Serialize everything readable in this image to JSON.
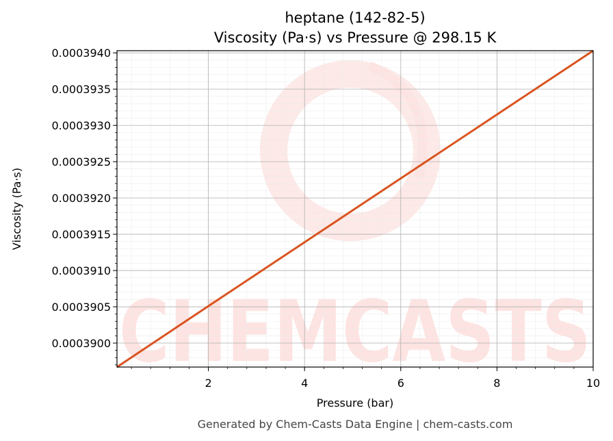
{
  "chart_data": {
    "type": "line",
    "title": "heptane (142-82-5)",
    "subtitle": "Viscosity (Pa·s) vs Pressure @ 298.15 K",
    "xlabel": "Pressure (bar)",
    "ylabel": "Viscosity (Pa·s)",
    "xlim": [
      0.1,
      10
    ],
    "ylim": [
      0.00038967,
      0.00039403
    ],
    "x_ticks": [
      2,
      4,
      6,
      8,
      10
    ],
    "x_tick_labels": [
      "2",
      "4",
      "6",
      "8",
      "10"
    ],
    "y_ticks": [
      0.00039,
      0.0003905,
      0.000391,
      0.0003915,
      0.000392,
      0.0003925,
      0.000393,
      0.0003935,
      0.000394
    ],
    "y_tick_labels": [
      "0.0003900",
      "0.0003905",
      "0.0003910",
      "0.0003915",
      "0.0003920",
      "0.0003925",
      "0.0003930",
      "0.0003935",
      "0.0003940"
    ],
    "grid": true,
    "series": [
      {
        "color": "#d9541e",
        "x": [
          0.1,
          2,
          4,
          6,
          8,
          10
        ],
        "y": [
          0.00038967,
          0.00039051,
          0.00039139,
          0.00039227,
          0.00039315,
          0.00039403
        ]
      }
    ]
  },
  "watermark": {
    "text": "CHEMCASTS",
    "color": "#fde3e1"
  },
  "footer": "Generated by Chem-Casts Data Engine | chem-casts.com"
}
